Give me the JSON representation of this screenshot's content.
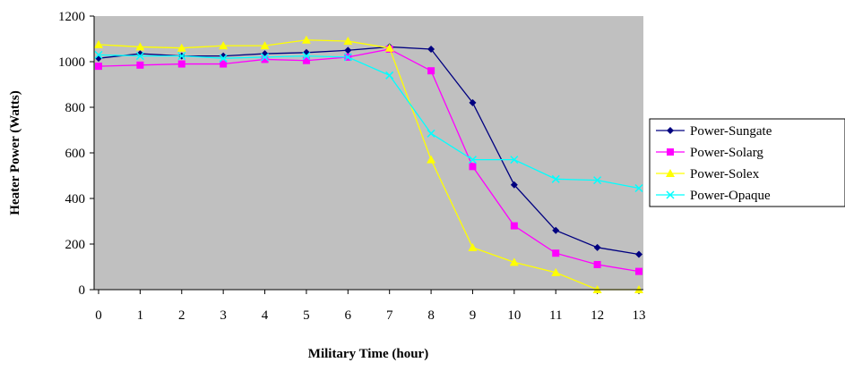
{
  "chart_data": {
    "type": "line",
    "title": "",
    "xlabel": "Military Time (hour)",
    "ylabel": "Heater Power (Watts)",
    "x": [
      0,
      1,
      2,
      3,
      4,
      5,
      6,
      7,
      8,
      9,
      10,
      11,
      12,
      13
    ],
    "xlim": [
      0,
      13
    ],
    "ylim": [
      0,
      1200
    ],
    "yticks": [
      0,
      200,
      400,
      600,
      800,
      1000,
      1200
    ],
    "grid": false,
    "plot_background": "#c0c0c0",
    "legend_position": "right",
    "series": [
      {
        "name": "Power-Sungate",
        "color": "#000080",
        "marker": "diamond",
        "values": [
          1015,
          1035,
          1025,
          1025,
          1035,
          1040,
          1050,
          1065,
          1055,
          820,
          460,
          260,
          185,
          155
        ]
      },
      {
        "name": "Power-Solarg",
        "color": "#ff00ff",
        "marker": "square",
        "values": [
          980,
          985,
          990,
          990,
          1010,
          1005,
          1020,
          1055,
          960,
          540,
          280,
          160,
          110,
          80
        ]
      },
      {
        "name": "Power-Solex",
        "color": "#ffff00",
        "marker": "triangle",
        "values": [
          1075,
          1065,
          1060,
          1070,
          1070,
          1095,
          1090,
          1060,
          570,
          185,
          120,
          75,
          0,
          0
        ]
      },
      {
        "name": "Power-Opaque",
        "color": "#00ffff",
        "marker": "x",
        "values": [
          1030,
          1025,
          1025,
          1015,
          1020,
          1025,
          1020,
          940,
          685,
          570,
          570,
          485,
          480,
          445
        ]
      }
    ]
  }
}
